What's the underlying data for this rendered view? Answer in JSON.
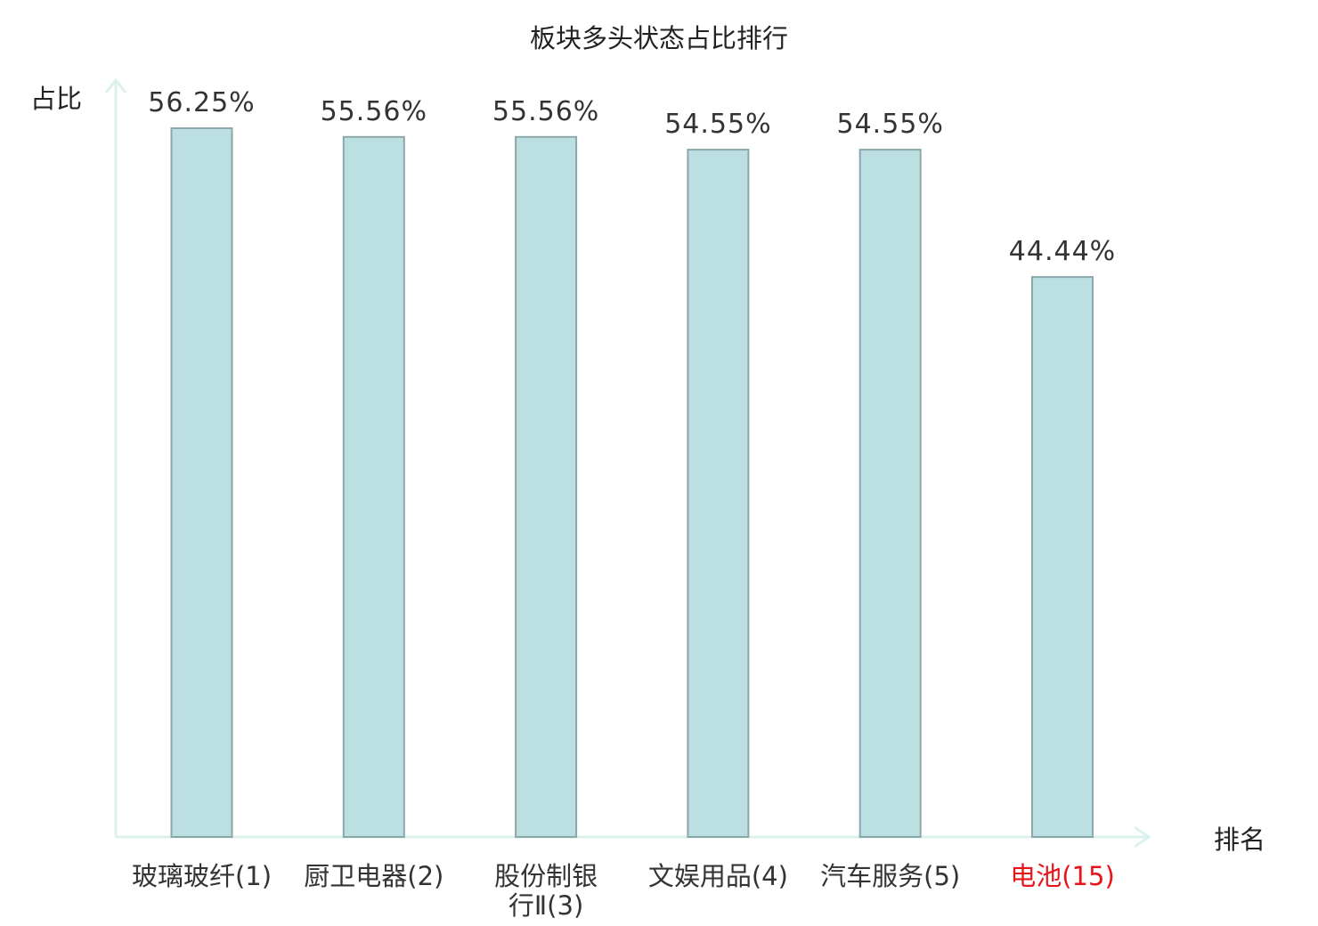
{
  "chart_data": {
    "type": "bar",
    "title": "板块多头状态占比排行",
    "xlabel": "排名",
    "ylabel": "占比",
    "categories": [
      [
        "玻璃玻纤(1)"
      ],
      [
        "厨卫电器(2)"
      ],
      [
        "股份制银",
        "行Ⅱ(3)"
      ],
      [
        "文娱用品(4)"
      ],
      [
        "汽车服务(5)"
      ],
      [
        "电池(15)"
      ]
    ],
    "values": [
      56.25,
      55.56,
      55.56,
      54.55,
      54.55,
      44.44
    ],
    "value_labels": [
      "56.25%",
      "55.56%",
      "55.56%",
      "54.55%",
      "54.55%",
      "44.44%"
    ],
    "highlight_index": 5,
    "ylim": [
      0,
      56.25
    ],
    "grid": false,
    "colors": {
      "bar_fill": "#bce0e2",
      "bar_stroke": "#8aa8aa",
      "axis": "#dcf1ee",
      "label": "#333333",
      "highlight": "#e8141a"
    }
  }
}
